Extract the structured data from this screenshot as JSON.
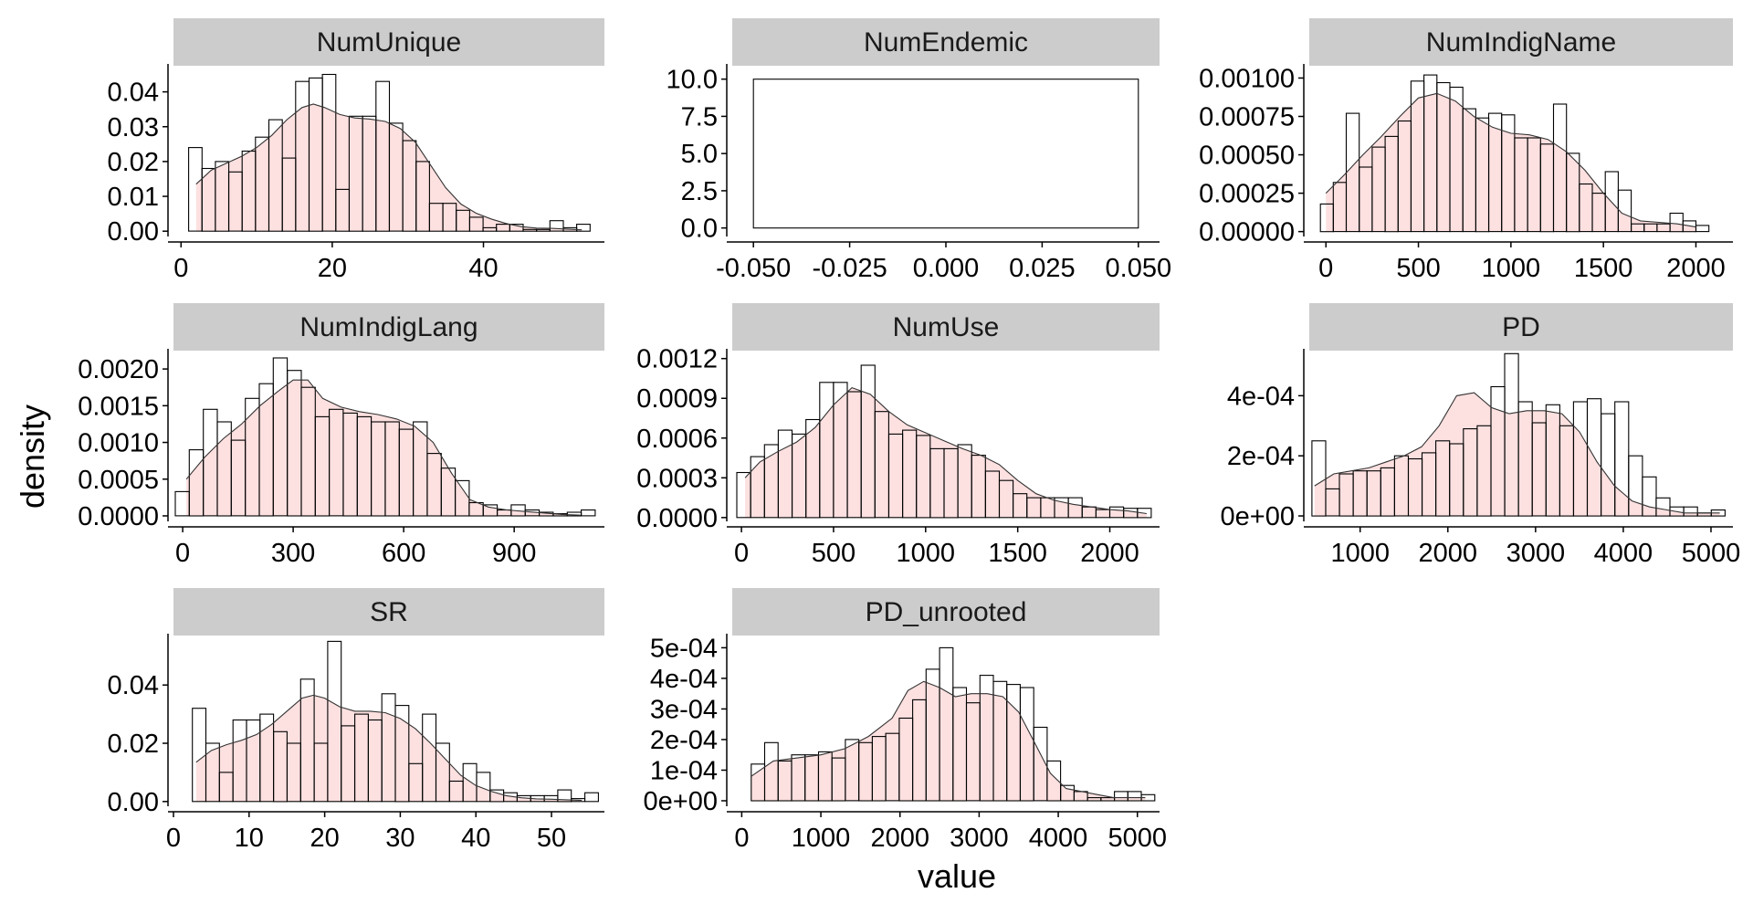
{
  "chart_data": {
    "type": "histogram-facets",
    "xlabel": "value",
    "ylabel": "density",
    "colors": {
      "strip": "#cccccc",
      "density_fill": "#fde0e0",
      "bar_stroke": "#000000",
      "axis": "#000000"
    },
    "panels": [
      {
        "name": "NumUnique",
        "xlim": [
          -1,
          56
        ],
        "ylim": [
          -0.001,
          0.0475
        ],
        "xticks": [
          0,
          20,
          40
        ],
        "xtick_labels": [
          "0",
          "20",
          "40"
        ],
        "yticks": [
          0,
          0.01,
          0.02,
          0.03,
          0.04
        ],
        "ytick_labels": [
          "0.00",
          "0.01",
          "0.02",
          "0.03",
          "0.04"
        ],
        "bins": {
          "start": 1,
          "width": 1.77,
          "heights": [
            0.024,
            0.018,
            0.02,
            0.017,
            0.023,
            0.027,
            0.032,
            0.021,
            0.043,
            0.044,
            0.045,
            0.012,
            0.033,
            0.033,
            0.043,
            0.031,
            0.026,
            0.02,
            0.008,
            0.008,
            0.006,
            0.004,
            0.001,
            0.002,
            0.002,
            0.0005,
            0.0005,
            0.003,
            0.001,
            0.002
          ]
        },
        "density": {
          "x": [
            2,
            4,
            6,
            8,
            10,
            12,
            14,
            16,
            17.5,
            19,
            21,
            23,
            25,
            27,
            29,
            31,
            33,
            35,
            37,
            39,
            41,
            43,
            45,
            47,
            49,
            51,
            53
          ],
          "y": [
            0.0135,
            0.0175,
            0.0195,
            0.0215,
            0.024,
            0.0275,
            0.032,
            0.0355,
            0.0365,
            0.0355,
            0.0335,
            0.0325,
            0.0322,
            0.0315,
            0.0295,
            0.0255,
            0.019,
            0.0125,
            0.0078,
            0.0052,
            0.0035,
            0.0022,
            0.0013,
            0.0009,
            0.0008,
            0.0006,
            0.0004
          ]
        }
      },
      {
        "name": "NumEndemic",
        "xlim": [
          -0.0555,
          0.0555
        ],
        "ylim": [
          -0.45,
          10.9
        ],
        "xticks": [
          -0.05,
          -0.025,
          0,
          0.025,
          0.05
        ],
        "xtick_labels": [
          "-0.050",
          "-0.025",
          "0.000",
          "0.025",
          "0.050"
        ],
        "yticks": [
          0,
          2.5,
          5,
          7.5,
          10
        ],
        "ytick_labels": [
          "0.0",
          "2.5",
          "5.0",
          "7.5",
          "10.0"
        ],
        "bins": {
          "start": -0.05,
          "width": 0.1,
          "heights": [
            10
          ]
        },
        "density": null
      },
      {
        "name": "NumIndigName",
        "xlim": [
          -90,
          2200
        ],
        "ylim": [
          -2e-05,
          0.00108
        ],
        "xticks": [
          0,
          500,
          1000,
          1500,
          2000
        ],
        "xtick_labels": [
          "0",
          "500",
          "1000",
          "1500",
          "2000"
        ],
        "yticks": [
          0,
          0.00025,
          0.0005,
          0.00075,
          0.001
        ],
        "ytick_labels": [
          "0.00000",
          "0.00025",
          "0.00050",
          "0.00075",
          "0.00100"
        ],
        "bins": {
          "start": -30,
          "width": 70,
          "heights": [
            0.00018,
            0.00032,
            0.00077,
            0.00042,
            0.00055,
            0.00062,
            0.00072,
            0.00098,
            0.00102,
            0.00097,
            0.00094,
            0.0008,
            0.00074,
            0.00077,
            0.00076,
            0.00061,
            0.00061,
            0.00057,
            0.00083,
            0.00051,
            0.00031,
            0.00025,
            0.00039,
            0.00027,
            5e-05,
            5e-05,
            5e-05,
            0.00012,
            7e-05,
            4e-05
          ]
        },
        "density": {
          "x": [
            0,
            100,
            200,
            300,
            400,
            500,
            600,
            700,
            800,
            900,
            1000,
            1100,
            1200,
            1300,
            1400,
            1500,
            1600,
            1700,
            1800,
            1900,
            2000
          ],
          "y": [
            0.00025,
            0.00037,
            0.0005,
            0.00062,
            0.00075,
            0.00087,
            0.0009,
            0.00085,
            0.00075,
            0.00068,
            0.00064,
            0.00063,
            0.0006,
            0.00052,
            0.0004,
            0.00025,
            0.00012,
            7e-05,
            6e-05,
            5e-05,
            3e-05
          ]
        }
      },
      {
        "name": "NumIndigLang",
        "xlim": [
          -25,
          1145
        ],
        "ylim": [
          -5e-05,
          0.00225
        ],
        "xticks": [
          0,
          300,
          600,
          900
        ],
        "xtick_labels": [
          "0",
          "300",
          "600",
          "900"
        ],
        "yticks": [
          0,
          0.0005,
          0.001,
          0.0015,
          0.002
        ],
        "ytick_labels": [
          "0.0000",
          "0.0005",
          "0.0010",
          "0.0015",
          "0.0020"
        ],
        "bins": {
          "start": -20,
          "width": 38,
          "heights": [
            0.00033,
            0.0009,
            0.00145,
            0.00128,
            0.00103,
            0.0016,
            0.0018,
            0.00215,
            0.00198,
            0.00175,
            0.00135,
            0.00145,
            0.0014,
            0.00135,
            0.00128,
            0.00128,
            0.00118,
            0.00128,
            0.00085,
            0.00065,
            0.00048,
            0.00018,
            0.00015,
            8e-05,
            0.00015,
            8e-05,
            5e-05,
            3e-05,
            5e-05,
            8e-05
          ]
        },
        "density": {
          "x": [
            10,
            60,
            110,
            160,
            210,
            260,
            300,
            340,
            380,
            430,
            480,
            530,
            580,
            630,
            680,
            730,
            780,
            830,
            880,
            930,
            980,
            1030,
            1080
          ],
          "y": [
            0.0005,
            0.0008,
            0.00105,
            0.00125,
            0.0015,
            0.0017,
            0.00185,
            0.00185,
            0.0016,
            0.00148,
            0.00142,
            0.00138,
            0.00132,
            0.00122,
            0.001,
            0.00058,
            0.00022,
            0.00012,
            8e-05,
            6e-05,
            4e-05,
            2e-05,
            1e-05
          ]
        }
      },
      {
        "name": "NumUse",
        "xlim": [
          -50,
          2270
        ],
        "ylim": [
          -1.5e-05,
          0.00126
        ],
        "xticks": [
          0,
          500,
          1000,
          1500,
          2000
        ],
        "xtick_labels": [
          "0",
          "500",
          "1000",
          "1500",
          "2000"
        ],
        "yticks": [
          0,
          0.0003,
          0.0006,
          0.0009,
          0.0012
        ],
        "ytick_labels": [
          "0.0000",
          "0.0003",
          "0.0006",
          "0.0009",
          "0.0012"
        ],
        "bins": {
          "start": -25,
          "width": 75,
          "heights": [
            0.00034,
            0.00046,
            0.00055,
            0.00066,
            0.00063,
            0.00074,
            0.00102,
            0.00102,
            0.00095,
            0.00115,
            0.0008,
            0.00063,
            0.00066,
            0.00062,
            0.00052,
            0.00052,
            0.00055,
            0.00047,
            0.00035,
            0.00028,
            0.00018,
            0.00015,
            0.00015,
            0.00015,
            0.00015,
            8e-05,
            6e-05,
            8e-05,
            7e-05,
            7e-05
          ]
        },
        "density": {
          "x": [
            20,
            100,
            200,
            300,
            400,
            500,
            600,
            700,
            800,
            900,
            1000,
            1100,
            1200,
            1300,
            1400,
            1500,
            1600,
            1700,
            1800,
            1900,
            2000,
            2100,
            2200
          ],
          "y": [
            0.0003,
            0.00042,
            0.0005,
            0.00057,
            0.00068,
            0.00085,
            0.00098,
            0.00093,
            0.0008,
            0.0007,
            0.00064,
            0.00058,
            0.00052,
            0.00047,
            0.0004,
            0.00028,
            0.00018,
            0.00013,
            0.0001,
            8e-05,
            6e-05,
            5e-05,
            3e-05
          ]
        }
      },
      {
        "name": "PD",
        "xlim": [
          420,
          5250
        ],
        "ylim": [
          -1.2e-05,
          0.00055
        ],
        "xticks": [
          1000,
          2000,
          3000,
          4000,
          5000
        ],
        "xtick_labels": [
          "1000",
          "2000",
          "3000",
          "4000",
          "5000"
        ],
        "yticks": [
          0,
          0.0002,
          0.0004
        ],
        "ytick_labels": [
          "0e+00",
          "2e-04",
          "4e-04"
        ],
        "bins": {
          "start": 450,
          "width": 157,
          "heights": [
            0.00025,
            9e-05,
            0.00014,
            0.00015,
            0.00015,
            0.00016,
            0.0002,
            0.00019,
            0.00021,
            0.00025,
            0.00024,
            0.00029,
            0.0003,
            0.00043,
            0.00054,
            0.00038,
            0.00031,
            0.00037,
            0.0003,
            0.00038,
            0.00039,
            0.00034,
            0.00038,
            0.0002,
            0.00013,
            6e-05,
            3e-05,
            3e-05,
            1e-05,
            2e-05
          ]
        },
        "density": {
          "x": [
            480,
            700,
            900,
            1100,
            1300,
            1500,
            1700,
            1900,
            2100,
            2300,
            2500,
            2700,
            2900,
            3100,
            3300,
            3500,
            3700,
            3900,
            4100,
            4300,
            4500,
            4700,
            4900,
            5100
          ],
          "y": [
            0.0001,
            0.00014,
            0.00015,
            0.00016,
            0.00018,
            0.0002,
            0.00023,
            0.0003,
            0.0004,
            0.00041,
            0.00036,
            0.00034,
            0.00035,
            0.00035,
            0.00034,
            0.00028,
            0.00018,
            0.0001,
            5e-05,
            3e-05,
            2e-05,
            1e-05,
            1e-05,
            1e-05
          ]
        }
      },
      {
        "name": "SR",
        "xlim": [
          0,
          57
        ],
        "ylim": [
          -0.001,
          0.057
        ],
        "xticks": [
          0,
          10,
          20,
          30,
          40,
          50
        ],
        "xtick_labels": [
          "0",
          "10",
          "20",
          "30",
          "40",
          "50"
        ],
        "yticks": [
          0,
          0.02,
          0.04
        ],
        "ytick_labels": [
          "0.00",
          "0.02",
          "0.04"
        ],
        "bins": {
          "start": 2.5,
          "width": 1.79,
          "heights": [
            0.032,
            0.02,
            0.01,
            0.028,
            0.028,
            0.03,
            0.024,
            0.02,
            0.042,
            0.02,
            0.055,
            0.026,
            0.03,
            0.028,
            0.037,
            0.033,
            0.013,
            0.03,
            0.02,
            0.007,
            0.013,
            0.01,
            0.004,
            0.003,
            0.002,
            0.002,
            0.002,
            0.004,
            0.001,
            0.003
          ]
        },
        "density": {
          "x": [
            3,
            5,
            7,
            9,
            11,
            13,
            15,
            17,
            18.5,
            20,
            22,
            24,
            26,
            28,
            30,
            32,
            34,
            36,
            38,
            40,
            42,
            44,
            46,
            48,
            50,
            52,
            54
          ],
          "y": [
            0.0135,
            0.0175,
            0.0195,
            0.021,
            0.023,
            0.0265,
            0.031,
            0.0355,
            0.0365,
            0.0355,
            0.0325,
            0.031,
            0.031,
            0.0305,
            0.0285,
            0.025,
            0.02,
            0.0145,
            0.009,
            0.0055,
            0.0035,
            0.002,
            0.0013,
            0.0009,
            0.0008,
            0.0006,
            0.0004
          ]
        }
      },
      {
        "name": "PD_unrooted",
        "xlim": [
          -120,
          5280
        ],
        "ylim": [
          -1.2e-05,
          0.00054
        ],
        "xticks": [
          0,
          1000,
          2000,
          3000,
          4000,
          5000
        ],
        "xtick_labels": [
          "0",
          "1000",
          "2000",
          "3000",
          "4000",
          "5000"
        ],
        "yticks": [
          0,
          0.0001,
          0.0002,
          0.0003,
          0.0004,
          0.0005
        ],
        "ytick_labels": [
          "0e+00",
          "1e-04",
          "2e-04",
          "3e-04",
          "4e-04",
          "5e-04"
        ],
        "bins": {
          "start": 120,
          "width": 170,
          "heights": [
            0.00012,
            0.00019,
            0.00013,
            0.00015,
            0.00015,
            0.00016,
            0.00014,
            0.0002,
            0.00019,
            0.00021,
            0.00022,
            0.00027,
            0.00033,
            0.00043,
            0.0005,
            0.00037,
            0.00032,
            0.00041,
            0.00039,
            0.00038,
            0.00037,
            0.00024,
            0.00013,
            5e-05,
            3e-05,
            1e-05,
            1e-05,
            3e-05,
            3e-05,
            2e-05
          ]
        },
        "density": {
          "x": [
            120,
            400,
            700,
            1000,
            1300,
            1600,
            1900,
            2100,
            2300,
            2500,
            2700,
            2900,
            3100,
            3300,
            3500,
            3700,
            3900,
            4100,
            4300,
            4500,
            4700,
            4900,
            5100
          ],
          "y": [
            8e-05,
            0.00013,
            0.00014,
            0.00015,
            0.00017,
            0.00021,
            0.00027,
            0.00036,
            0.00039,
            0.00037,
            0.00034,
            0.00035,
            0.00035,
            0.00034,
            0.00029,
            0.00019,
            9e-05,
            4e-05,
            3e-05,
            2e-05,
            1e-05,
            1e-05,
            1e-05
          ]
        }
      }
    ]
  }
}
